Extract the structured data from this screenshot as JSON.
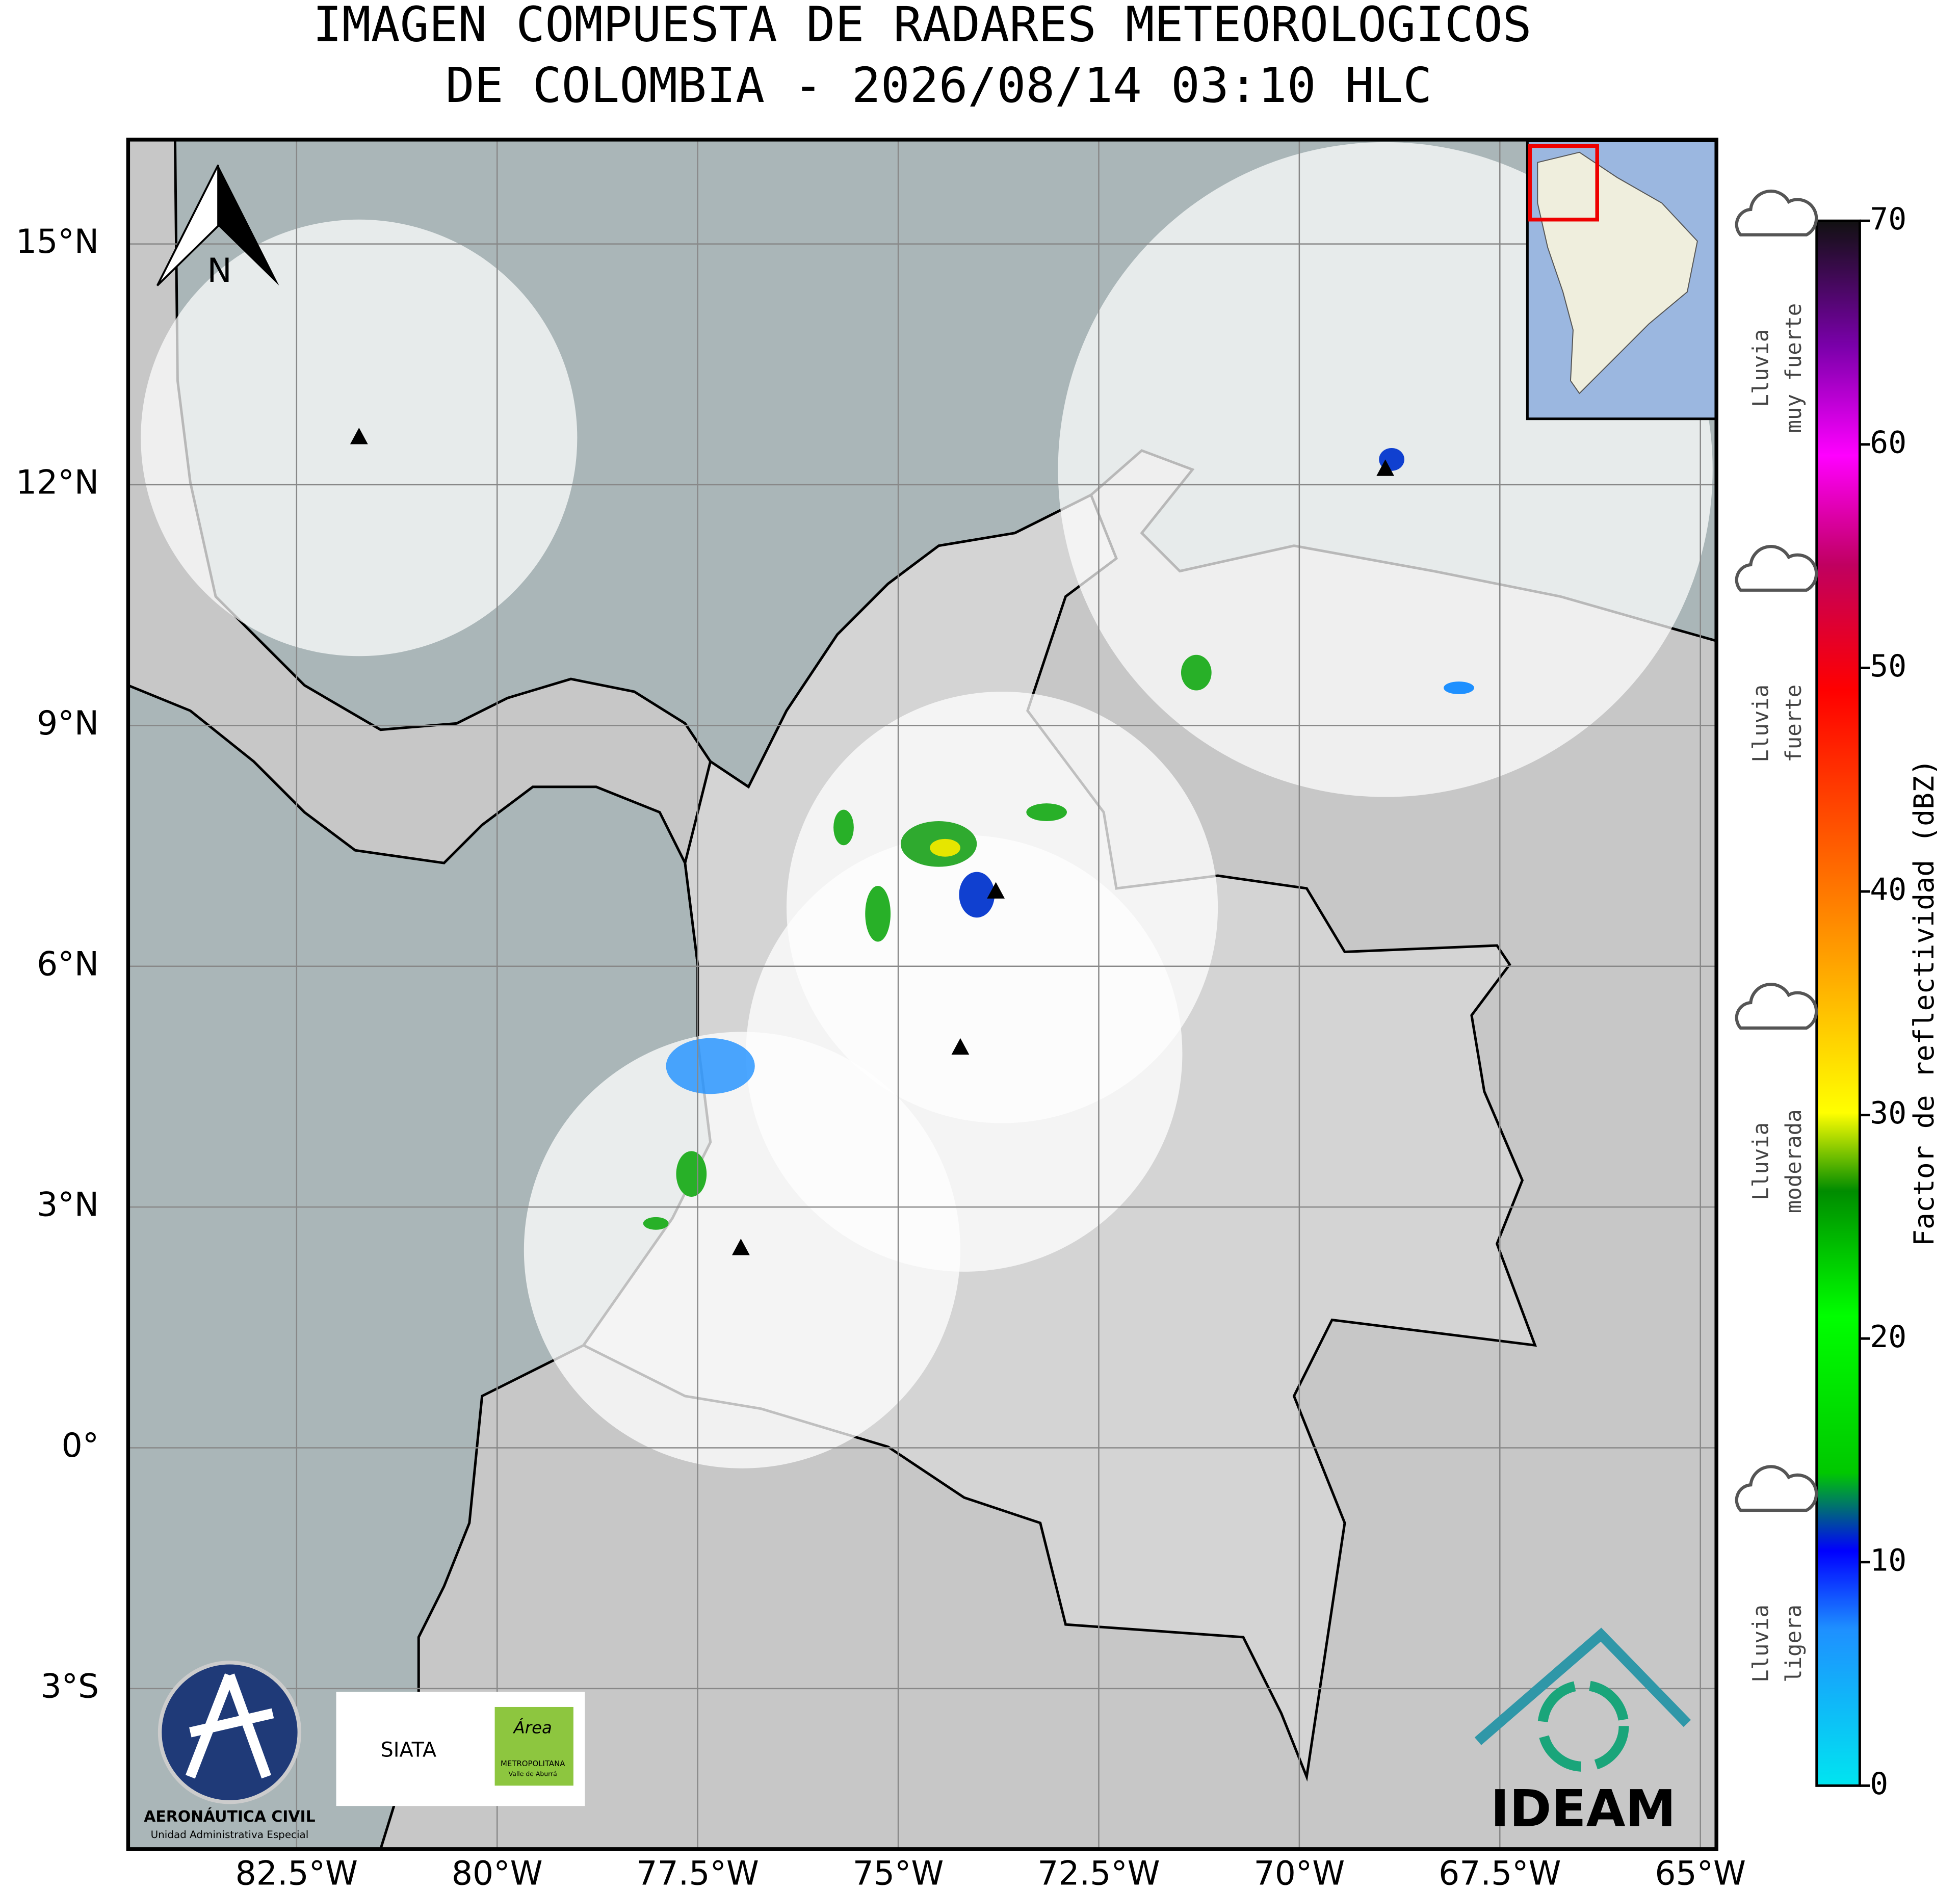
{
  "title": [
    "IMAGEN COMPUESTA DE RADARES METEOROLOGICOS",
    "DE COLOMBIA - 2026/08/14 03:10 HLC"
  ],
  "map": {
    "xlim": [
      -84.6,
      -64.8
    ],
    "ylim": [
      -5.0,
      16.3
    ],
    "xticks": [
      {
        "value": -82.5,
        "label": "82.5°W"
      },
      {
        "value": -80,
        "label": "80°W"
      },
      {
        "value": -77.5,
        "label": "77.5°W"
      },
      {
        "value": -75,
        "label": "75°W"
      },
      {
        "value": -72.5,
        "label": "72.5°W"
      },
      {
        "value": -70,
        "label": "70°W"
      },
      {
        "value": -67.5,
        "label": "67.5°W"
      },
      {
        "value": -65,
        "label": "65°W"
      }
    ],
    "yticks": [
      {
        "value": 15,
        "label": "15°N"
      },
      {
        "value": 12,
        "label": "12°N"
      },
      {
        "value": 9,
        "label": "9°N"
      },
      {
        "value": 6,
        "label": "6°N"
      },
      {
        "value": 3,
        "label": "3°N"
      },
      {
        "value": 0,
        "label": "0°"
      },
      {
        "value": -3,
        "label": "3°S"
      }
    ],
    "north_label": "N"
  },
  "colorbar": {
    "label": "Factor de reflectividad (dBZ)",
    "clim": [
      0,
      70
    ],
    "ticks": [
      0,
      10,
      20,
      30,
      40,
      50,
      60,
      70
    ],
    "categories": [
      [
        "Lluvia",
        "muy fuerte"
      ],
      [
        "Lluvia",
        "fuerte"
      ],
      [
        "Lluvia",
        "moderada"
      ],
      [
        "Lluvia",
        "ligera"
      ]
    ]
  },
  "logos": {
    "aerocivil": "AERONÁUTICA CIVIL",
    "aerocivil_sub": "Unidad Administrativa Especial",
    "siata": "SIATA",
    "area": "Área",
    "area_sub": "METROPOLITANA",
    "area_sub2": "Valle de Aburrá",
    "ideam": "IDEAM"
  }
}
